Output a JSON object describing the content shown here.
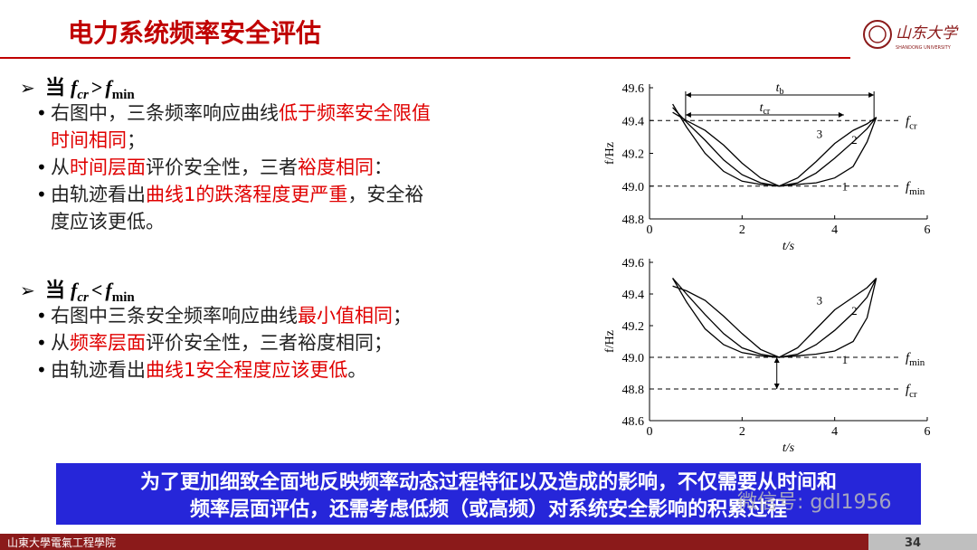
{
  "header": {
    "title": "电力系统频率安全评估",
    "logo_text": "山东大学",
    "logo_sub": "SHANDONG UNIVERSITY"
  },
  "sections": [
    {
      "heading": {
        "word": "当",
        "left": "f",
        "left_sub": "cr",
        "op": ">",
        "right": "f",
        "right_sub": "min"
      },
      "lines": [
        {
          "bullet": true,
          "runs": [
            {
              "text": "右图中，三条频率响应曲线"
            },
            {
              "text": "低于频率安全限值",
              "emphasis": true
            }
          ]
        },
        {
          "bullet": false,
          "runs": [
            {
              "text": "时间相同",
              "emphasis": true
            },
            {
              "text": "；"
            }
          ]
        },
        {
          "bullet": true,
          "runs": [
            {
              "text": "从"
            },
            {
              "text": "时间层面",
              "emphasis": true
            },
            {
              "text": "评价安全性，三者"
            },
            {
              "text": "裕度相同",
              "emphasis": true
            },
            {
              "text": "："
            }
          ]
        },
        {
          "bullet": true,
          "runs": [
            {
              "text": "由轨迹看出"
            },
            {
              "text": "曲线1的跌落程度更严重",
              "emphasis": true
            },
            {
              "text": "，安全裕"
            }
          ]
        },
        {
          "bullet": false,
          "runs": [
            {
              "text": "度应该更低。"
            }
          ]
        }
      ]
    },
    {
      "heading": {
        "word": "当",
        "left": "f",
        "left_sub": "cr",
        "op": "<",
        "right": "f",
        "right_sub": "min"
      },
      "lines": [
        {
          "bullet": true,
          "runs": [
            {
              "text": "右图中三条安全频率响应曲线"
            },
            {
              "text": "最小值相同",
              "emphasis": true
            },
            {
              "text": "；"
            }
          ]
        },
        {
          "bullet": true,
          "runs": [
            {
              "text": "从"
            },
            {
              "text": "频率层面",
              "emphasis": true
            },
            {
              "text": "评价安全性，三者裕度相同；"
            }
          ]
        },
        {
          "bullet": true,
          "runs": [
            {
              "text": "由轨迹看出"
            },
            {
              "text": "曲线1安全程度应该更低",
              "emphasis": true
            },
            {
              "text": "。"
            }
          ]
        }
      ]
    }
  ],
  "chart_data": [
    {
      "type": "line",
      "xlabel": "t/s",
      "ylabel": "f/Hz",
      "x": [
        0.5,
        0.8,
        1.2,
        1.6,
        2,
        2.4,
        2.8,
        3.2,
        3.6,
        4,
        4.4,
        4.7,
        4.9
      ],
      "series": [
        {
          "name": "1",
          "color": "#000000",
          "values": [
            49.5,
            49.36,
            49.2,
            49.09,
            49.03,
            49.01,
            49.0,
            49.01,
            49.02,
            49.05,
            49.12,
            49.27,
            49.42
          ]
        },
        {
          "name": "2",
          "color": "#000000",
          "values": [
            49.48,
            49.39,
            49.28,
            49.16,
            49.07,
            49.02,
            49.0,
            49.02,
            49.08,
            49.17,
            49.27,
            49.35,
            49.42
          ]
        },
        {
          "name": "3",
          "color": "#000000",
          "values": [
            49.45,
            49.4,
            49.34,
            49.25,
            49.14,
            49.05,
            49.0,
            49.05,
            49.15,
            49.26,
            49.34,
            49.38,
            49.42
          ]
        }
      ],
      "xlim": [
        0,
        6
      ],
      "xticks": [
        0,
        2,
        4,
        6
      ],
      "ylim": [
        48.8,
        49.6
      ],
      "yticks": [
        48.8,
        {
          "value": 49,
          "label": "49.0"
        },
        49.2,
        49.4,
        49.6
      ],
      "ref_lines": [
        {
          "value": 49.4,
          "label": "f",
          "sub": "cr"
        },
        {
          "value": 49.0,
          "label": "f",
          "sub": "min"
        }
      ],
      "spans": [
        {
          "start": 0.78,
          "end": 4.85,
          "label": "t",
          "sub": "b"
        },
        {
          "start": 0.78,
          "end": 4.2,
          "label": "t",
          "sub": "cr"
        }
      ]
    },
    {
      "type": "line",
      "xlabel": "t/s",
      "ylabel": "f/Hz",
      "x": [
        0.5,
        0.8,
        1.2,
        1.6,
        2,
        2.4,
        2.8,
        3.2,
        3.6,
        4,
        4.4,
        4.7,
        4.9
      ],
      "series": [
        {
          "name": "1",
          "color": "#000000",
          "values": [
            49.5,
            49.35,
            49.18,
            49.08,
            49.03,
            49.01,
            49.0,
            49.01,
            49.02,
            49.04,
            49.1,
            49.25,
            49.5
          ]
        },
        {
          "name": "2",
          "color": "#000000",
          "values": [
            49.5,
            49.4,
            49.27,
            49.15,
            49.06,
            49.02,
            49.0,
            49.02,
            49.08,
            49.17,
            49.28,
            49.38,
            49.5
          ]
        },
        {
          "name": "3",
          "color": "#000000",
          "values": [
            49.45,
            49.42,
            49.36,
            49.26,
            49.15,
            49.05,
            49.0,
            49.06,
            49.18,
            49.3,
            49.38,
            49.44,
            49.5
          ]
        }
      ],
      "xlim": [
        0,
        6
      ],
      "xticks": [
        0,
        2,
        4,
        6
      ],
      "ylim": [
        48.6,
        49.6
      ],
      "yticks": [
        48.6,
        48.8,
        {
          "value": 49,
          "label": "49.0"
        },
        49.2,
        49.4,
        49.6
      ],
      "ref_lines": [
        {
          "value": 49.0,
          "label": "f",
          "sub": "min"
        },
        {
          "value": 48.8,
          "label": "f",
          "sub": "cr"
        }
      ],
      "arrow": {
        "x": 2.75,
        "from": 49.0,
        "to": 48.8
      }
    }
  ],
  "banner": {
    "lines": [
      "为了更加细致全面地反映频率动态过程特征以及造成的影响，不仅需要从时间和",
      "频率层面评估，还需考虑低频（或高频）对系统安全影响的积累过程"
    ]
  },
  "watermark": "微信号: gdl1956",
  "footer": {
    "school": "山東大學電氣工程學院",
    "page": "34"
  }
}
